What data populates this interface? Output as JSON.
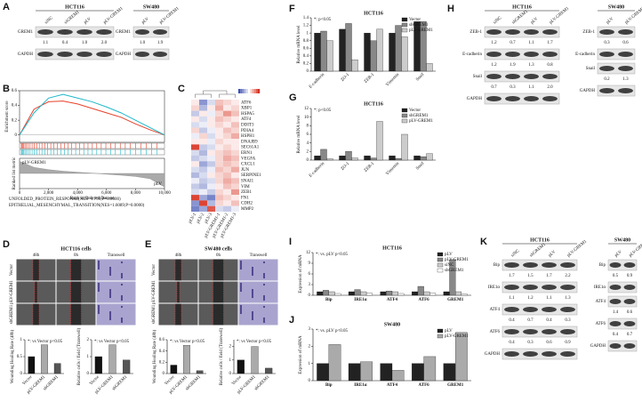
{
  "panel_labels": [
    "A",
    "B",
    "C",
    "D",
    "E",
    "F",
    "G",
    "H",
    "I",
    "J",
    "K"
  ],
  "blots": [
    {
      "title": "HCT116",
      "lanes": [
        "siNC",
        "siGREM1",
        "pLV",
        "pLV-GREM1"
      ],
      "bands": [
        {
          "name": "GREM1",
          "values": [
            "1.1",
            "0.4",
            "1.0",
            "2.0"
          ]
        },
        {
          "name": "GAPDH"
        }
      ]
    },
    {
      "title": "SW480",
      "lanes": [
        "pLV",
        "pLV-GREM1"
      ],
      "bands": [
        {
          "name": "GREM1",
          "values": [
            "1.0",
            "1.9"
          ]
        },
        {
          "name": "GAPDH"
        }
      ]
    },
    {
      "title": "HCT116",
      "lanes": [
        "siNC",
        "shGREM1",
        "pLV",
        "pLV-GREM1"
      ],
      "bands": [
        {
          "name": "ZEB-1",
          "values": [
            "1.2",
            "0.7",
            "1.1",
            "1.7"
          ]
        },
        {
          "name": "E-cadherin",
          "values": [
            "1.2",
            "1.9",
            "1.3",
            "0.8"
          ]
        },
        {
          "name": "Snail",
          "values": [
            "0.7",
            "0.3",
            "1.1",
            "2.0"
          ]
        },
        {
          "name": "GAPDH"
        }
      ]
    },
    {
      "title": "SW480",
      "lanes": [
        "pLV",
        "pLV-GREM1"
      ],
      "bands": [
        {
          "name": "ZEB-1",
          "values": [
            "0.3",
            "0.6"
          ]
        },
        {
          "name": "E-cadherin"
        },
        {
          "name": "Snail",
          "values": [
            "0.2",
            "1.3"
          ]
        },
        {
          "name": "GAPDH"
        }
      ]
    },
    {
      "title": "HCT116",
      "lanes": [
        "siNC",
        "shGREM1",
        "pLV",
        "pLV-GREM1"
      ],
      "bands": [
        {
          "name": "Bip",
          "values": [
            "1.7",
            "1.5",
            "1.7",
            "2.2"
          ]
        },
        {
          "name": "IRE1α",
          "values": [
            "1.1",
            "1.2",
            "1.1",
            "1.3"
          ]
        },
        {
          "name": "ATF4",
          "values": [
            "0.4",
            "0.7",
            "0.4",
            "0.3"
          ]
        },
        {
          "name": "ATF6",
          "values": [
            "0.4",
            "0.3",
            "0.6",
            "0.9"
          ]
        },
        {
          "name": "GAPDH"
        }
      ]
    },
    {
      "title": "SW480",
      "lanes": [
        "pLV",
        "pLV-GREM1"
      ],
      "bands": [
        {
          "name": "Bip",
          "values": [
            "0.5",
            "0.9"
          ]
        },
        {
          "name": "IRE1α"
        },
        {
          "name": "ATF4",
          "values": [
            "1.4",
            "0.6"
          ]
        },
        {
          "name": "ATF6",
          "values": [
            "0.4",
            "0.7"
          ]
        },
        {
          "name": "GAPDH"
        }
      ]
    }
  ],
  "wound": [
    {
      "title": "HCT116 cells",
      "columns": [
        "48h",
        "0h",
        "Transwell"
      ],
      "rows": [
        "Vector",
        "pLV-GREM1",
        "shGREM1"
      ]
    },
    {
      "title": "SW480 cells",
      "columns": [
        "48h",
        "0h",
        "Transwell"
      ],
      "rows": [
        "Vector",
        "pLV-GREM1",
        "shGREM1"
      ]
    }
  ],
  "chart_data": [
    {
      "type": "gsea",
      "x_label": "Rank in Ordered Dataset",
      "y_label": "Enrichment score",
      "y2_label": "Ranked list metric",
      "left_label": "pLV-GREM1",
      "right_label": "pLV",
      "x": [
        0,
        1000,
        2000,
        3000,
        4000,
        5000,
        6000,
        7000,
        8000,
        9000,
        10000
      ],
      "series": [
        {
          "name": "UNFOLDED_PROTEIN_RESPONSE(NES=1.799;P=0.0000)",
          "color": "#e8402a",
          "values": [
            0,
            0.35,
            0.45,
            0.46,
            0.42,
            0.36,
            0.3,
            0.24,
            0.15,
            0.07,
            0
          ]
        },
        {
          "name": "EPITHELIAL_MESENCHYMAL_TRANSITION(NES=1.6089;P=0.0000)",
          "color": "#1fb8c9",
          "values": [
            0,
            0.3,
            0.5,
            0.55,
            0.5,
            0.45,
            0.38,
            0.3,
            0.2,
            0.1,
            0
          ]
        }
      ],
      "metric": [
        0.8,
        0.4,
        0.25,
        0.15,
        0.08,
        0.02,
        -0.05,
        -0.12,
        -0.2,
        -0.35,
        -0.9
      ],
      "xlim": [
        0,
        10000
      ],
      "xticks": [
        0,
        {
          "value": 2000,
          "label": "2,000"
        },
        {
          "value": 4000,
          "label": "4,000"
        },
        {
          "value": 6000,
          "label": "6,000"
        },
        {
          "value": 8000,
          "label": "8,000"
        },
        {
          "value": 10000,
          "label": "10,000"
        }
      ],
      "ylim": [
        -0.1,
        0.6
      ],
      "yticks": [
        0,
        0.2,
        0.4,
        0.6
      ],
      "y2lim": [
        -1,
        1
      ]
    },
    {
      "type": "heatmap",
      "rows": [
        "ATF6",
        "XBP1",
        "HSPA5",
        "ATF4",
        "DDIT3",
        "PDIA4",
        "HSPH1",
        "DNAJB9",
        "SEC61A1",
        "ERN1",
        "VEGFA",
        "CXCL1",
        "JUN",
        "SERPINE1",
        "SNAI1",
        "VIM",
        "ZEB1",
        "FN1",
        "CDH2",
        "MMP2"
      ],
      "columns": [
        "pLV-1",
        "pLV-2",
        "pLV-3",
        "pLV-GREM1-1",
        "pLV-GREM1-2",
        "pLV-GREM1-3"
      ],
      "values": [
        [
          0.1,
          -0.6,
          -0.2,
          0.3,
          0.2,
          0.1
        ],
        [
          0.2,
          -0.4,
          0.1,
          0.4,
          0.1,
          0.2
        ],
        [
          -0.3,
          0.1,
          -0.1,
          0.2,
          0.5,
          0.3
        ],
        [
          0.1,
          -0.2,
          0.1,
          0.3,
          0.2,
          0.1
        ],
        [
          -0.2,
          -0.1,
          0.1,
          0.2,
          0.1,
          0.3
        ],
        [
          0.2,
          -0.3,
          -0.1,
          0.1,
          0.3,
          0.2
        ],
        [
          -0.1,
          0.2,
          -0.2,
          0.1,
          0.2,
          0.4
        ],
        [
          0.1,
          0.1,
          -0.1,
          0.2,
          0.1,
          0.1
        ],
        [
          0.9,
          -0.3,
          -0.2,
          0.1,
          0.2,
          0.1
        ],
        [
          -0.2,
          -0.4,
          0.1,
          0.2,
          0.3,
          0.2
        ],
        [
          -0.3,
          -0.2,
          -0.1,
          0.2,
          0.4,
          0.3
        ],
        [
          0.1,
          -0.5,
          -0.3,
          0.2,
          0.3,
          0.2
        ],
        [
          -0.2,
          -0.3,
          -0.1,
          0.3,
          0.2,
          0.4
        ],
        [
          -0.4,
          -0.2,
          0.1,
          0.2,
          0.3,
          0.1
        ],
        [
          -0.1,
          -0.3,
          -0.2,
          0.2,
          0.4,
          0.3
        ],
        [
          -0.3,
          -0.4,
          -0.1,
          0.1,
          0.3,
          0.2
        ],
        [
          -0.2,
          -0.1,
          -0.3,
          0.2,
          0.1,
          0.5
        ],
        [
          0.9,
          -0.5,
          -0.7,
          0.3,
          0.2,
          0.1
        ],
        [
          -0.6,
          0.9,
          -0.4,
          0.2,
          0.1,
          0.3
        ],
        [
          -0.7,
          -0.5,
          0.8,
          -0.2,
          -0.3,
          -0.1
        ]
      ],
      "zlim": [
        -1,
        1
      ],
      "colors": [
        "#3c4fb0",
        "#ffffff",
        "#d7301f"
      ]
    },
    {
      "type": "bar",
      "y_label": "Wounding Healing Rate (48h)",
      "annotation": "*: vs Vector p<0.05",
      "categories": [
        "Vector",
        "pLV-GREM1",
        "shGREM1"
      ],
      "values": [
        0.5,
        0.85,
        0.3
      ],
      "color": [
        "#111111",
        "#aaaaaa",
        "#555555"
      ],
      "ylim": [
        0,
        1
      ],
      "yticks": [
        0,
        0.5,
        1
      ]
    },
    {
      "type": "bar",
      "y_label": "Relative cells / field (Transwell)",
      "annotation": "*: vs Vector p<0.05",
      "categories": [
        "Vector",
        "pLV-GREM1",
        "shGREM1"
      ],
      "values": [
        1,
        1.7,
        0.8
      ],
      "color": [
        "#111111",
        "#aaaaaa",
        "#555555"
      ],
      "ylim": [
        0,
        2
      ],
      "yticks": [
        0,
        1,
        2
      ]
    },
    {
      "type": "bar",
      "y_label": "Wounding Healing Rate (48h)",
      "annotation": "*: vs Vector p<0.05",
      "categories": [
        "Vector",
        "pLV-GREM1",
        "shGREM1"
      ],
      "values": [
        0.15,
        0.5,
        0.05
      ],
      "color": [
        "#111111",
        "#aaaaaa",
        "#555555"
      ],
      "ylim": [
        0,
        0.6
      ],
      "yticks": [
        0,
        0.2,
        0.4,
        0.6
      ]
    },
    {
      "type": "bar",
      "y_label": "Relative cells / field (Transwell)",
      "annotation": "*: vs Vector p<0.05",
      "categories": [
        "Vector",
        "pLV-GREM1",
        "shGREM1"
      ],
      "values": [
        1,
        2,
        0.4
      ],
      "color": [
        "#111111",
        "#aaaaaa",
        "#555555"
      ],
      "ylim": [
        0,
        2.5
      ],
      "yticks": [
        0,
        1,
        2
      ]
    },
    {
      "type": "bar",
      "title": "HCT116",
      "y_label": "Relative mRNA level",
      "annotation": "*: p<0.05",
      "categories": [
        "E-cadherin",
        "ZO-1",
        "ZEB-1",
        "Vimentin",
        "Snail"
      ],
      "series": [
        {
          "name": "Vector",
          "color": "#222222",
          "values": [
            1,
            1.1,
            1,
            1,
            1.3
          ]
        },
        {
          "name": "shGREM1",
          "color": "#888888",
          "values": [
            1.05,
            1.25,
            0.8,
            1.2,
            1.3
          ]
        },
        {
          "name": "pLV-GREM1",
          "color": "#cccccc",
          "values": [
            0.8,
            0.3,
            1.1,
            0.9,
            0.2
          ]
        }
      ],
      "ylim": [
        0,
        1.4
      ],
      "yticks": [
        0,
        0.2,
        0.4,
        0.6,
        0.8,
        1.0,
        1.2,
        1.4
      ],
      "legend": "upper-right"
    },
    {
      "type": "bar",
      "title": "HCT116",
      "y_label": "Relative mRNA level",
      "annotation": "*: p<0.05",
      "categories": [
        "E-cadherin",
        "ZO-1",
        "ZEB-1",
        "Vimentin",
        "Snail"
      ],
      "series": [
        {
          "name": "Vector",
          "color": "#222222",
          "values": [
            1,
            1,
            1,
            1,
            1
          ]
        },
        {
          "name": "shGREM1",
          "color": "#888888",
          "values": [
            2.5,
            2,
            0.5,
            0.4,
            0.8
          ]
        },
        {
          "name": "pLV-GREM1",
          "color": "#cccccc",
          "values": [
            0.3,
            0.5,
            9,
            6,
            1.5
          ]
        }
      ],
      "ylim": [
        0,
        12
      ],
      "yticks": [
        0,
        2,
        4,
        6,
        8,
        10,
        12
      ],
      "legend": "upper-right"
    },
    {
      "type": "bar",
      "title": "HCT116",
      "y_label": "Expression of mRNA",
      "annotation": "*: vs. pLV p<0.05",
      "categories": [
        "Bip",
        "IRE1α",
        "ATF4",
        "ATF6",
        "GREM1"
      ],
      "series": [
        {
          "name": "pLV",
          "color": "#222222",
          "values": [
            1,
            1,
            1,
            1,
            1
          ]
        },
        {
          "name": "pLV-GREM1",
          "color": "#888888",
          "values": [
            1.4,
            1.6,
            1.2,
            2.5,
            10
          ]
        },
        {
          "name": "siNC",
          "color": "#cccccc",
          "values": [
            1,
            1,
            1,
            1,
            1
          ]
        },
        {
          "name": "shGREM1",
          "color": "#ffffff",
          "values": [
            0.5,
            0.6,
            0.5,
            0.6,
            0.3
          ]
        }
      ],
      "ylim": [
        0,
        12
      ],
      "yticks": [
        0,
        3,
        6,
        9,
        12
      ],
      "legend": "upper-right"
    },
    {
      "type": "bar",
      "title": "SW480",
      "y_label": "Expression of mRNA",
      "annotation": "*: vs. pLV p<0.05",
      "categories": [
        "Bip",
        "IRE1α",
        "ATF4",
        "ATF6",
        "GREM1"
      ],
      "series": [
        {
          "name": "pLV",
          "color": "#222222",
          "values": [
            1,
            1,
            1,
            1,
            1
          ]
        },
        {
          "name": "pLV-GREM1",
          "color": "#aaaaaa",
          "values": [
            2.1,
            1.1,
            0.6,
            1.4,
            2.8
          ]
        }
      ],
      "ylim": [
        0,
        3
      ],
      "yticks": [
        0,
        1,
        2,
        3
      ],
      "legend": "upper-right"
    }
  ]
}
